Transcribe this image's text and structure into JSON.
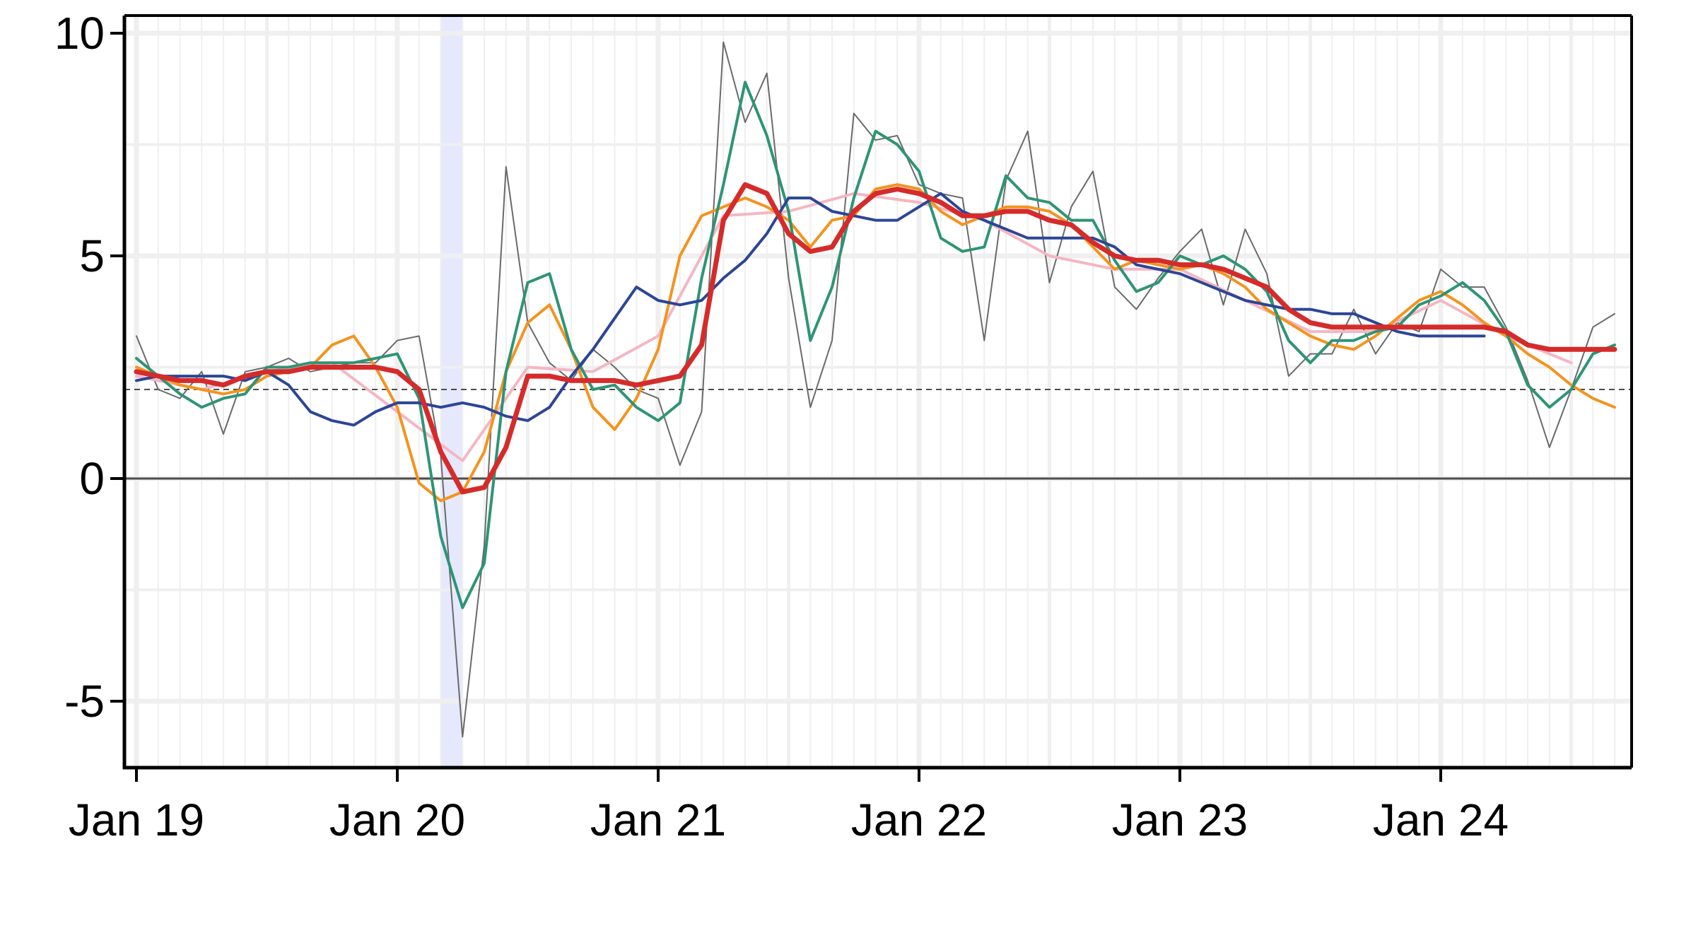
{
  "chart_data": {
    "type": "line",
    "title": "",
    "xlabel": "",
    "ylabel": "",
    "x_ticks": [
      "Jan 19",
      "Jan 20",
      "Jan 21",
      "Jan 22",
      "Jan 23",
      "Jan 24"
    ],
    "y_ticks": [
      "10",
      "5",
      "0",
      "-5"
    ],
    "y_tick_values": [
      10,
      5,
      0,
      -5
    ],
    "ylim": [
      -6.5,
      10.5
    ],
    "x_start": "Jan 19",
    "x_end": "Sep 24",
    "grid": true,
    "reference_lines": [
      {
        "value": 0,
        "style": "solid",
        "color": "#4d4d4d"
      },
      {
        "value": 2,
        "style": "dashed",
        "color": "#4d4d4d"
      }
    ],
    "shaded_band": {
      "from": "Mar 20",
      "to": "Apr 20",
      "color": "#e6e8fb"
    },
    "series": [
      {
        "color": "#6a6a6a",
        "width": 2,
        "x": [
          "Jan 19",
          "Feb 19",
          "Mar 19",
          "Apr 19",
          "May 19",
          "Jun 19",
          "Jul 19",
          "Aug 19",
          "Sep 19",
          "Oct 19",
          "Nov 19",
          "Dec 19",
          "Jan 20",
          "Feb 20",
          "Mar 20",
          "Apr 20",
          "May 20",
          "Jun 20",
          "Jul 20",
          "Aug 20",
          "Sep 20",
          "Oct 20",
          "Nov 20",
          "Dec 20",
          "Jan 21",
          "Feb 21",
          "Mar 21",
          "Apr 21",
          "May 21",
          "Jun 21",
          "Jul 21",
          "Aug 21",
          "Sep 21",
          "Oct 21",
          "Nov 21",
          "Dec 21",
          "Jan 22",
          "Feb 22",
          "Mar 22",
          "Apr 22",
          "May 22",
          "Jun 22",
          "Jul 22",
          "Aug 22",
          "Sep 22",
          "Oct 22",
          "Nov 22",
          "Dec 22",
          "Jan 23",
          "Feb 23",
          "Mar 23",
          "Apr 23",
          "May 23",
          "Jun 23",
          "Jul 23",
          "Aug 23",
          "Sep 23",
          "Oct 23",
          "Nov 23",
          "Dec 23",
          "Jan 24",
          "Feb 24",
          "Mar 24",
          "Apr 24",
          "May 24",
          "Jun 24",
          "Jul 24",
          "Aug 24",
          "Sep 24"
        ],
        "values": [
          3.2,
          2.0,
          1.8,
          2.4,
          1.0,
          2.4,
          2.5,
          2.7,
          2.4,
          2.5,
          2.6,
          2.6,
          3.1,
          3.2,
          0.5,
          -5.8,
          -1.5,
          7.0,
          3.5,
          2.6,
          2.2,
          2.9,
          2.5,
          2.0,
          1.8,
          0.3,
          1.5,
          9.8,
          8.0,
          9.1,
          4.5,
          1.6,
          3.1,
          8.2,
          7.6,
          7.7,
          6.6,
          6.4,
          6.3,
          3.1,
          6.7,
          7.8,
          4.4,
          6.1,
          6.9,
          4.3,
          3.8,
          4.5,
          5.1,
          5.6,
          3.9,
          5.6,
          4.6,
          2.3,
          2.8,
          2.8,
          3.8,
          2.8,
          3.5,
          3.3,
          4.7,
          4.3,
          4.3,
          3.4,
          2.2,
          0.7,
          2.0,
          3.4,
          3.7
        ]
      },
      {
        "color": "#f4b6c2",
        "width": 4,
        "x": [
          "Jan 19",
          "Apr 19",
          "Jul 19",
          "Oct 19",
          "Jan 20",
          "Apr 20",
          "Jul 20",
          "Oct 20",
          "Jan 21",
          "Apr 21",
          "Jul 21",
          "Oct 21",
          "Jan 22",
          "Apr 22",
          "Jul 22",
          "Oct 22",
          "Jan 23",
          "Apr 23",
          "Jul 23",
          "Oct 23",
          "Jan 24",
          "Apr 24",
          "Jul 24"
        ],
        "values": [
          2.3,
          2.0,
          2.4,
          2.6,
          1.5,
          0.4,
          2.5,
          2.4,
          3.2,
          5.9,
          6.0,
          6.4,
          6.2,
          5.8,
          5.0,
          4.7,
          4.7,
          4.0,
          3.3,
          3.3,
          4.0,
          3.2,
          2.6
        ]
      },
      {
        "color": "#f4931e",
        "width": 4,
        "x": [
          "Jan 19",
          "Feb 19",
          "Mar 19",
          "Apr 19",
          "May 19",
          "Jun 19",
          "Jul 19",
          "Aug 19",
          "Sep 19",
          "Oct 19",
          "Nov 19",
          "Dec 19",
          "Jan 20",
          "Feb 20",
          "Mar 20",
          "Apr 20",
          "May 20",
          "Jun 20",
          "Jul 20",
          "Aug 20",
          "Sep 20",
          "Oct 20",
          "Nov 20",
          "Dec 20",
          "Jan 21",
          "Feb 21",
          "Mar 21",
          "Apr 21",
          "May 21",
          "Jun 21",
          "Jul 21",
          "Aug 21",
          "Sep 21",
          "Oct 21",
          "Nov 21",
          "Dec 21",
          "Jan 22",
          "Feb 22",
          "Mar 22",
          "Apr 22",
          "May 22",
          "Jun 22",
          "Jul 22",
          "Aug 22",
          "Sep 22",
          "Oct 22",
          "Nov 22",
          "Dec 22",
          "Jan 23",
          "Feb 23",
          "Mar 23",
          "Apr 23",
          "May 23",
          "Jun 23",
          "Jul 23",
          "Aug 23",
          "Sep 23",
          "Oct 23",
          "Nov 23",
          "Dec 23",
          "Jan 24",
          "Feb 24",
          "Mar 24",
          "Apr 24",
          "May 24",
          "Jun 24",
          "Jul 24",
          "Aug 24",
          "Sep 24"
        ],
        "values": [
          2.5,
          2.3,
          2.1,
          2.0,
          1.9,
          2.0,
          2.3,
          2.4,
          2.5,
          3.0,
          3.2,
          2.5,
          1.6,
          -0.1,
          -0.5,
          -0.3,
          0.6,
          2.4,
          3.5,
          3.9,
          2.9,
          1.6,
          1.1,
          1.8,
          2.9,
          5.0,
          5.9,
          6.1,
          6.3,
          6.1,
          5.8,
          5.2,
          5.8,
          5.9,
          6.5,
          6.6,
          6.5,
          6.0,
          5.7,
          5.9,
          6.1,
          6.1,
          6.0,
          5.7,
          5.2,
          4.7,
          4.9,
          4.8,
          4.7,
          4.8,
          4.6,
          4.3,
          3.8,
          3.5,
          3.2,
          3.0,
          2.9,
          3.2,
          3.6,
          4.0,
          4.2,
          3.9,
          3.5,
          3.2,
          2.8,
          2.5,
          2.1,
          1.8,
          1.6
        ]
      },
      {
        "color": "#2e9475",
        "width": 4,
        "x": [
          "Jan 19",
          "Feb 19",
          "Mar 19",
          "Apr 19",
          "May 19",
          "Jun 19",
          "Jul 19",
          "Aug 19",
          "Sep 19",
          "Oct 19",
          "Nov 19",
          "Dec 19",
          "Jan 20",
          "Feb 20",
          "Mar 20",
          "Apr 20",
          "May 20",
          "Jun 20",
          "Jul 20",
          "Aug 20",
          "Sep 20",
          "Oct 20",
          "Nov 20",
          "Dec 20",
          "Jan 21",
          "Feb 21",
          "Mar 21",
          "Apr 21",
          "May 21",
          "Jun 21",
          "Jul 21",
          "Aug 21",
          "Sep 21",
          "Oct 21",
          "Nov 21",
          "Dec 21",
          "Jan 22",
          "Feb 22",
          "Mar 22",
          "Apr 22",
          "May 22",
          "Jun 22",
          "Jul 22",
          "Aug 22",
          "Sep 22",
          "Oct 22",
          "Nov 22",
          "Dec 22",
          "Jan 23",
          "Feb 23",
          "Mar 23",
          "Apr 23",
          "May 23",
          "Jun 23",
          "Jul 23",
          "Aug 23",
          "Sep 23",
          "Oct 23",
          "Nov 23",
          "Dec 23",
          "Jan 24",
          "Feb 24",
          "Mar 24",
          "Apr 24",
          "May 24",
          "Jun 24",
          "Jul 24",
          "Aug 24",
          "Sep 24"
        ],
        "values": [
          2.7,
          2.3,
          1.9,
          1.6,
          1.8,
          1.9,
          2.5,
          2.5,
          2.6,
          2.6,
          2.6,
          2.7,
          2.8,
          1.8,
          -1.3,
          -2.9,
          -1.9,
          2.4,
          4.4,
          4.6,
          2.9,
          2.0,
          2.1,
          1.6,
          1.3,
          1.7,
          4.5,
          6.6,
          8.9,
          7.7,
          6.0,
          3.1,
          4.3,
          6.3,
          7.8,
          7.5,
          6.9,
          5.4,
          5.1,
          5.2,
          6.8,
          6.3,
          6.2,
          5.8,
          5.8,
          4.9,
          4.2,
          4.4,
          5.0,
          4.8,
          5.0,
          4.7,
          4.2,
          3.1,
          2.6,
          3.1,
          3.1,
          3.3,
          3.4,
          3.9,
          4.1,
          4.4,
          4.0,
          3.3,
          2.1,
          1.6,
          2.0,
          2.8,
          3.0
        ]
      },
      {
        "color": "#2c4596",
        "width": 4,
        "x": [
          "Jan 19",
          "Feb 19",
          "Mar 19",
          "Apr 19",
          "May 19",
          "Jun 19",
          "Jul 19",
          "Aug 19",
          "Sep 19",
          "Oct 19",
          "Nov 19",
          "Dec 19",
          "Jan 20",
          "Feb 20",
          "Mar 20",
          "Apr 20",
          "May 20",
          "Jun 20",
          "Jul 20",
          "Aug 20",
          "Sep 20",
          "Oct 20",
          "Nov 20",
          "Dec 20",
          "Jan 21",
          "Feb 21",
          "Mar 21",
          "Apr 21",
          "May 21",
          "Jun 21",
          "Jul 21",
          "Aug 21",
          "Sep 21",
          "Oct 21",
          "Nov 21",
          "Dec 21",
          "Jan 22",
          "Feb 22",
          "Mar 22",
          "Apr 22",
          "May 22",
          "Jun 22",
          "Jul 22",
          "Aug 22",
          "Sep 22",
          "Oct 22",
          "Nov 22",
          "Dec 22",
          "Jan 23",
          "Feb 23",
          "Mar 23",
          "Apr 23",
          "May 23",
          "Jun 23",
          "Jul 23",
          "Aug 23",
          "Sep 23",
          "Oct 23",
          "Nov 23",
          "Dec 23",
          "Jan 24",
          "Feb 24",
          "Mar 24"
        ],
        "values": [
          2.2,
          2.3,
          2.3,
          2.3,
          2.3,
          2.2,
          2.4,
          2.1,
          1.5,
          1.3,
          1.2,
          1.5,
          1.7,
          1.7,
          1.6,
          1.7,
          1.6,
          1.4,
          1.3,
          1.6,
          2.3,
          2.9,
          3.6,
          4.3,
          4.0,
          3.9,
          4.0,
          4.5,
          4.9,
          5.5,
          6.3,
          6.3,
          6.0,
          5.9,
          5.8,
          5.8,
          6.1,
          6.4,
          6.0,
          5.8,
          5.6,
          5.4,
          5.4,
          5.4,
          5.4,
          5.2,
          4.8,
          4.7,
          4.6,
          4.4,
          4.2,
          4.0,
          3.9,
          3.8,
          3.8,
          3.7,
          3.7,
          3.5,
          3.3,
          3.2,
          3.2,
          3.2,
          3.2
        ]
      },
      {
        "color": "#d52b2b",
        "width": 7,
        "x": [
          "Jan 19",
          "Feb 19",
          "Mar 19",
          "Apr 19",
          "May 19",
          "Jun 19",
          "Jul 19",
          "Aug 19",
          "Sep 19",
          "Oct 19",
          "Nov 19",
          "Dec 19",
          "Jan 20",
          "Feb 20",
          "Mar 20",
          "Apr 20",
          "May 20",
          "Jun 20",
          "Jul 20",
          "Aug 20",
          "Sep 20",
          "Oct 20",
          "Nov 20",
          "Dec 20",
          "Jan 21",
          "Feb 21",
          "Mar 21",
          "Apr 21",
          "May 21",
          "Jun 21",
          "Jul 21",
          "Aug 21",
          "Sep 21",
          "Oct 21",
          "Nov 21",
          "Dec 21",
          "Jan 22",
          "Feb 22",
          "Mar 22",
          "Apr 22",
          "May 22",
          "Jun 22",
          "Jul 22",
          "Aug 22",
          "Sep 22",
          "Oct 22",
          "Nov 22",
          "Dec 22",
          "Jan 23",
          "Feb 23",
          "Mar 23",
          "Apr 23",
          "May 23",
          "Jun 23",
          "Jul 23",
          "Aug 23",
          "Sep 23",
          "Oct 23",
          "Nov 23",
          "Dec 23",
          "Jan 24",
          "Feb 24",
          "Mar 24",
          "Apr 24",
          "May 24",
          "Jun 24",
          "Jul 24",
          "Aug 24",
          "Sep 24"
        ],
        "values": [
          2.4,
          2.3,
          2.2,
          2.2,
          2.1,
          2.3,
          2.4,
          2.4,
          2.5,
          2.5,
          2.5,
          2.5,
          2.4,
          2.0,
          0.6,
          -0.3,
          -0.2,
          0.7,
          2.3,
          2.3,
          2.2,
          2.2,
          2.2,
          2.1,
          2.2,
          2.3,
          3.0,
          5.8,
          6.6,
          6.4,
          5.5,
          5.1,
          5.2,
          6.0,
          6.4,
          6.5,
          6.4,
          6.2,
          5.9,
          5.9,
          6.0,
          6.0,
          5.8,
          5.7,
          5.3,
          5.0,
          4.9,
          4.9,
          4.8,
          4.8,
          4.7,
          4.5,
          4.3,
          3.8,
          3.5,
          3.4,
          3.4,
          3.4,
          3.4,
          3.4,
          3.4,
          3.4,
          3.4,
          3.3,
          3.0,
          2.9,
          2.9,
          2.9,
          2.9
        ]
      }
    ]
  }
}
